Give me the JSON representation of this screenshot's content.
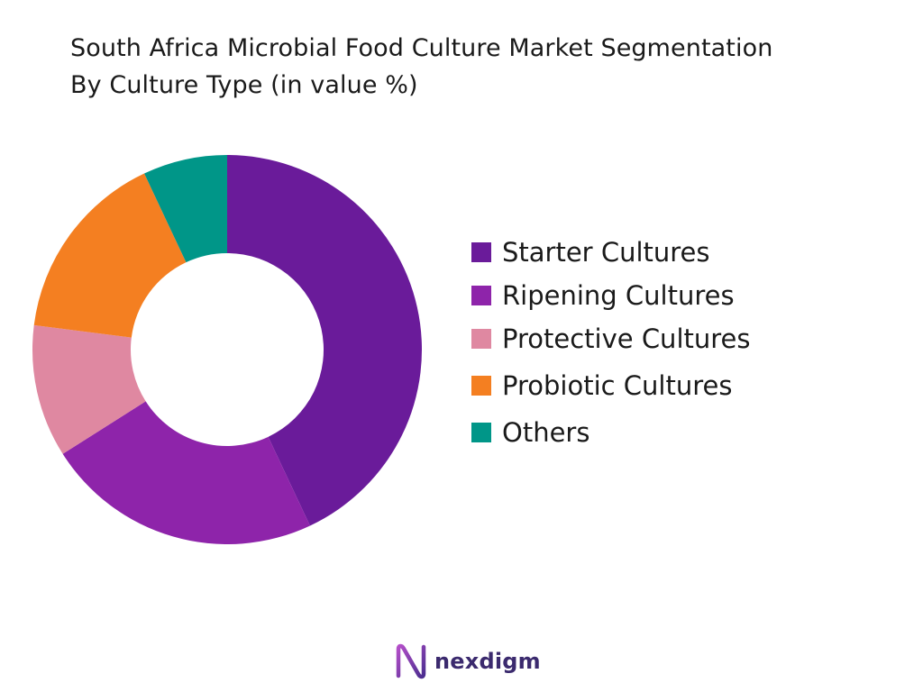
{
  "chart_data": {
    "type": "pie",
    "donut": true,
    "title_lines": [
      "South Africa Microbial Food Culture Market Segmentation",
      "By Culture Type (in value %)"
    ],
    "categories": [
      "Starter Cultures",
      "Ripening Cultures",
      "Protective Cultures",
      "Probiotic Cultures",
      "Others"
    ],
    "values": [
      43,
      23,
      11,
      16,
      7
    ],
    "colors": [
      "#6a1b9a",
      "#8e24aa",
      "#df88a1",
      "#f47f21",
      "#009688"
    ],
    "legend_position": "right"
  },
  "brand": {
    "name": "nexdigm",
    "icon": "nexdigm-logo-icon",
    "color": "#3b2a6e"
  }
}
